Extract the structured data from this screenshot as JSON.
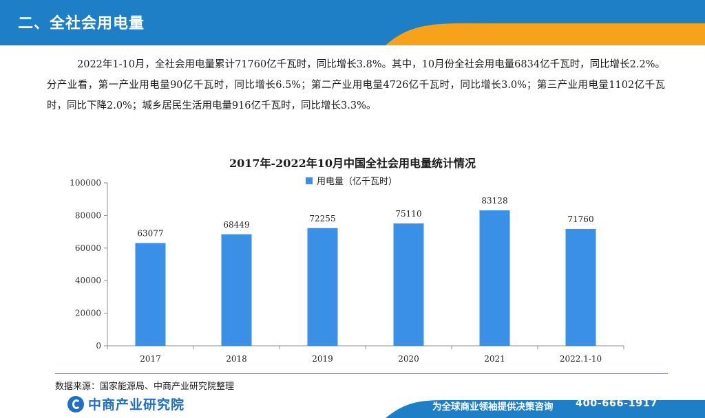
{
  "header": {
    "title": "二、全社会用电量"
  },
  "summary": {
    "text": "2022年1-10月，全社会用电量累计71760亿千瓦时，同比增长3.8%。其中，10月份全社会用电量6834亿千瓦时，同比增长2.2%。分产业看，第一产业用电量90亿千瓦时，同比增长6.5%；第二产业用电量4726亿千瓦时，同比增长3.0%；第三产业用电量1102亿千瓦时，同比下降2.0%；城乡居民生活用电量916亿千瓦时，同比增长3.3%。"
  },
  "chart_data": {
    "type": "bar",
    "title": "2017年-2022年10月中国全社会用电量统计情况",
    "categories": [
      "2017",
      "2018",
      "2019",
      "2020",
      "2021",
      "2022.1-10"
    ],
    "series": [
      {
        "name": "用电量（亿千瓦时）",
        "values": [
          63077,
          68449,
          72255,
          75110,
          83128,
          71760
        ]
      }
    ],
    "ylim": [
      0,
      100000
    ],
    "yticks": [
      "0",
      "20000",
      "40000",
      "60000",
      "80000",
      "100000"
    ],
    "xlabel": "",
    "ylabel": "",
    "legend": "top-center",
    "grid": false,
    "bar_color": "#3a8fe6"
  },
  "footer": {
    "source": "数据来源：国家能源局、中商产业研究院整理",
    "logo_text": "中商产业研究院",
    "slogan": "为全球商业领袖提供决策咨询",
    "phone": "400-666-1917"
  },
  "colors": {
    "brand_blue": "#1f7fc6",
    "accent_orange": "#f7a21b"
  }
}
